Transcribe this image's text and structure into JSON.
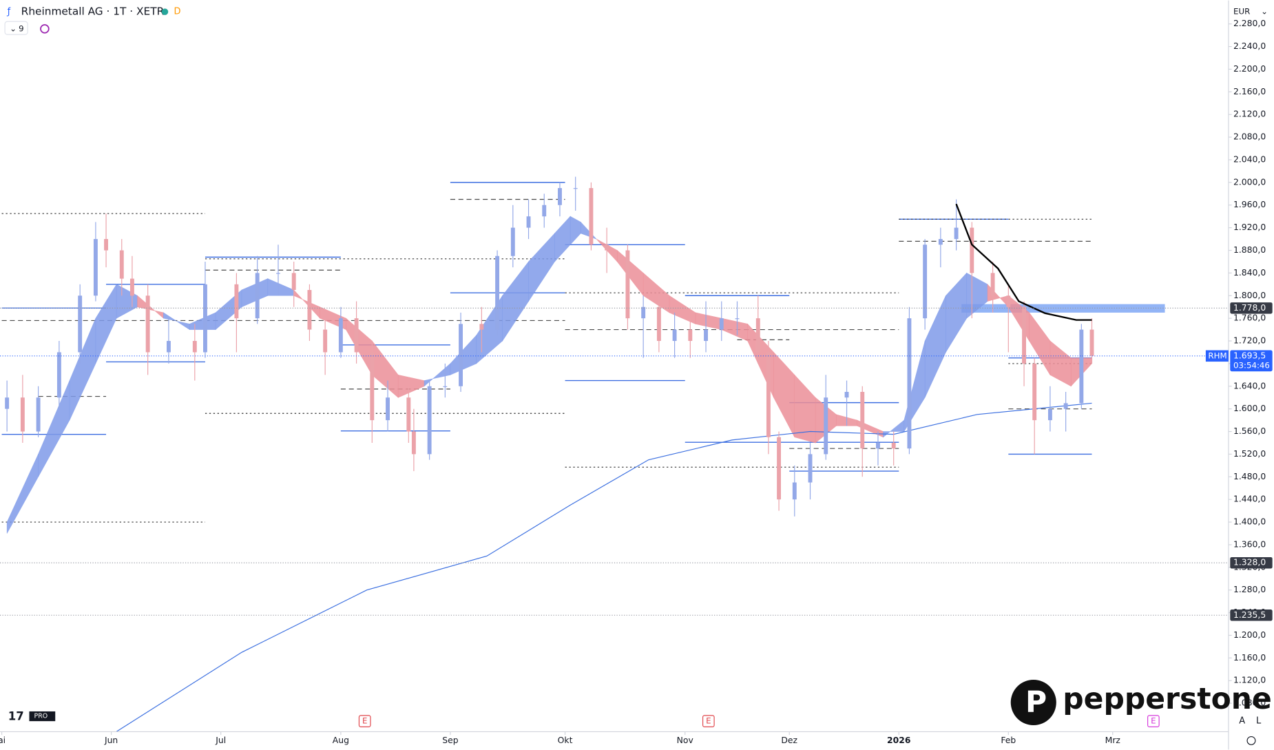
{
  "header": {
    "symbol": "Rheinmetall AG · 1T · XETR",
    "badge": "D",
    "indicators_count": "9",
    "currency": "EUR"
  },
  "chart_data": {
    "type": "candlestick",
    "x": [
      -20,
      -17,
      -14,
      -10,
      -6,
      -3,
      -1,
      2,
      4,
      7,
      11,
      16,
      18,
      24,
      28,
      32,
      35,
      38,
      41,
      44,
      47,
      50,
      53,
      57,
      58,
      61,
      64,
      67,
      71,
      74,
      77,
      80,
      83,
      86,
      89,
      92,
      95,
      99,
      102,
      105,
      108,
      111,
      114,
      117,
      120,
      124,
      126,
      128,
      131,
      134,
      137,
      141,
      144,
      147,
      150,
      153,
      156,
      159,
      162,
      165,
      169,
      172,
      175,
      177,
      180,
      183,
      186,
      188
    ],
    "open": [
      1600,
      1620,
      1560,
      1620,
      1700,
      1800,
      1900,
      1880,
      1830,
      1800,
      1700,
      1720,
      1700,
      1820,
      1760,
      1840,
      1840,
      1810,
      1740,
      1700,
      1760,
      1700,
      1580,
      1620,
      1560,
      1520,
      1640,
      1640,
      1750,
      1740,
      1870,
      1920,
      1940,
      1960,
      1990,
      1990,
      1890,
      1880,
      1760,
      1780,
      1720,
      1740,
      1720,
      1740,
      1760,
      1760,
      1700,
      1550,
      1440,
      1470,
      1520,
      1620,
      1630,
      1530,
      1540,
      1530,
      1760,
      1890,
      1900,
      1920,
      1840,
      1800,
      1780,
      1680,
      1580,
      1600,
      1610,
      1740
    ],
    "high": [
      1650,
      1660,
      1640,
      1720,
      1820,
      1930,
      1945,
      1900,
      1870,
      1820,
      1760,
      1750,
      1860,
      1840,
      1870,
      1890,
      1860,
      1820,
      1760,
      1780,
      1790,
      1720,
      1650,
      1640,
      1600,
      1650,
      1680,
      1770,
      1780,
      1880,
      1960,
      1970,
      1980,
      2000,
      2010,
      2000,
      1920,
      1890,
      1800,
      1800,
      1770,
      1760,
      1790,
      1790,
      1790,
      1800,
      1720,
      1560,
      1500,
      1540,
      1660,
      1650,
      1640,
      1560,
      1560,
      1780,
      1900,
      1920,
      1970,
      1930,
      1860,
      1820,
      1790,
      1690,
      1640,
      1630,
      1750,
      1760
    ],
    "low": [
      1560,
      1540,
      1550,
      1600,
      1680,
      1790,
      1850,
      1800,
      1780,
      1660,
      1680,
      1650,
      1690,
      1700,
      1750,
      1800,
      1780,
      1720,
      1660,
      1690,
      1680,
      1540,
      1560,
      1540,
      1490,
      1510,
      1620,
      1630,
      1700,
      1730,
      1850,
      1900,
      1920,
      1940,
      1950,
      1880,
      1840,
      1740,
      1690,
      1700,
      1690,
      1690,
      1700,
      1720,
      1730,
      1680,
      1520,
      1420,
      1410,
      1440,
      1510,
      1570,
      1480,
      1500,
      1500,
      1520,
      1740,
      1850,
      1880,
      1760,
      1770,
      1700,
      1640,
      1520,
      1560,
      1560,
      1600,
      1680
    ],
    "close": [
      1620,
      1560,
      1620,
      1700,
      1800,
      1900,
      1880,
      1830,
      1800,
      1700,
      1720,
      1700,
      1820,
      1760,
      1840,
      1840,
      1810,
      1740,
      1700,
      1760,
      1700,
      1580,
      1620,
      1560,
      1520,
      1640,
      1640,
      1750,
      1740,
      1870,
      1920,
      1940,
      1960,
      1990,
      1990,
      1890,
      1880,
      1760,
      1780,
      1720,
      1740,
      1720,
      1740,
      1760,
      1760,
      1700,
      1550,
      1440,
      1470,
      1520,
      1620,
      1630,
      1530,
      1540,
      1530,
      1760,
      1890,
      1900,
      1920,
      1840,
      1800,
      1780,
      1680,
      1580,
      1600,
      1610,
      1740,
      1693.5
    ],
    "up_color": "#93a8e8",
    "down_color": "#eba2a9",
    "xlim": [
      -21.34,
      214.2
    ],
    "xticks": [
      {
        "value": -21,
        "label": "ai"
      },
      {
        "value": 0,
        "label": "Jun"
      },
      {
        "value": 21,
        "label": "Jul"
      },
      {
        "value": 44,
        "label": "Aug"
      },
      {
        "value": 65,
        "label": "Sep"
      },
      {
        "value": 87,
        "label": "Okt"
      },
      {
        "value": 110,
        "label": "Nov"
      },
      {
        "value": 130,
        "label": "Dez"
      },
      {
        "value": 151,
        "label": "2026"
      },
      {
        "value": 172,
        "label": "Feb"
      },
      {
        "value": 192,
        "label": "Mrz"
      }
    ],
    "ylim": [
      1029.7,
      2321.5
    ],
    "yticks": [
      {
        "value": 1080,
        "label": "1.080,0"
      },
      {
        "value": 1120,
        "label": "1.120,0"
      },
      {
        "value": 1160,
        "label": "1.160,0"
      },
      {
        "value": 1200,
        "label": "1.200,0"
      },
      {
        "value": 1240,
        "label": "1.240,0"
      },
      {
        "value": 1280,
        "label": "1.280,0"
      },
      {
        "value": 1320,
        "label": "1.320,0"
      },
      {
        "value": 1360,
        "label": "1.360,0"
      },
      {
        "value": 1400,
        "label": "1.400,0"
      },
      {
        "value": 1440,
        "label": "1.440,0"
      },
      {
        "value": 1480,
        "label": "1.480,0"
      },
      {
        "value": 1520,
        "label": "1.520,0"
      },
      {
        "value": 1560,
        "label": "1.560,0"
      },
      {
        "value": 1600,
        "label": "1.600,0"
      },
      {
        "value": 1640,
        "label": "1.640,0"
      },
      {
        "value": 1680,
        "label": "1.680,0"
      },
      {
        "value": 1720,
        "label": "1.720,0"
      },
      {
        "value": 1760,
        "label": "1.760,0"
      },
      {
        "value": 1800,
        "label": "1.800,0"
      },
      {
        "value": 1840,
        "label": "1.840,0"
      },
      {
        "value": 1880,
        "label": "1.880,0"
      },
      {
        "value": 1920,
        "label": "1.920,0"
      },
      {
        "value": 1960,
        "label": "1.960,0"
      },
      {
        "value": 2000,
        "label": "2.000,0"
      },
      {
        "value": 2040,
        "label": "2.040,0"
      },
      {
        "value": 2080,
        "label": "2.080,0"
      },
      {
        "value": 2120,
        "label": "2.120,0"
      },
      {
        "value": 2160,
        "label": "2.160,0"
      },
      {
        "value": 2200,
        "label": "2.200,0"
      },
      {
        "value": 2240,
        "label": "2.240,0"
      },
      {
        "value": 2280,
        "label": "2.280,0"
      }
    ],
    "ribbon": {
      "x": [
        -20,
        -14,
        -8,
        -3,
        1,
        5,
        10,
        15,
        20,
        25,
        30,
        35,
        40,
        45,
        50,
        55,
        60,
        65,
        70,
        75,
        80,
        85,
        88,
        90,
        93,
        97,
        102,
        107,
        112,
        117,
        122,
        127,
        131,
        135,
        139,
        143,
        148,
        152,
        156,
        160,
        164,
        168,
        172,
        176,
        180,
        184,
        188
      ],
      "fast": [
        1400,
        1520,
        1650,
        1760,
        1820,
        1800,
        1760,
        1750,
        1770,
        1810,
        1830,
        1810,
        1760,
        1740,
        1660,
        1620,
        1640,
        1680,
        1730,
        1800,
        1860,
        1910,
        1940,
        1930,
        1900,
        1860,
        1800,
        1770,
        1750,
        1740,
        1720,
        1620,
        1550,
        1540,
        1570,
        1570,
        1550,
        1580,
        1720,
        1800,
        1840,
        1820,
        1780,
        1720,
        1660,
        1640,
        1680
      ],
      "slow": [
        1380,
        1480,
        1580,
        1680,
        1760,
        1780,
        1770,
        1740,
        1740,
        1780,
        1800,
        1800,
        1780,
        1760,
        1720,
        1660,
        1650,
        1660,
        1680,
        1720,
        1790,
        1860,
        1890,
        1910,
        1900,
        1880,
        1840,
        1800,
        1770,
        1760,
        1750,
        1700,
        1660,
        1620,
        1590,
        1580,
        1560,
        1560,
        1620,
        1700,
        1760,
        1790,
        1800,
        1770,
        1720,
        1690,
        1690
      ],
      "up_color": "#7f9be9",
      "down_color": "#ec8f98"
    },
    "moving_average": {
      "x": [
        1,
        25,
        49,
        72,
        88,
        103,
        119,
        134,
        150,
        166,
        188
      ],
      "values": [
        1030,
        1170,
        1280,
        1340,
        1430,
        1510,
        1545,
        1560,
        1555,
        1590,
        1610
      ],
      "color": "#3b6fe0"
    },
    "vwap": {
      "x": [
        162,
        165,
        170,
        174,
        179,
        185,
        188
      ],
      "values": [
        1962,
        1890,
        1848,
        1790,
        1769,
        1757,
        1757
      ],
      "color": "#000000"
    },
    "levels": [
      {
        "x": [
          -21,
          18
        ],
        "price": 1945,
        "style": "dotted"
      },
      {
        "x": [
          -21,
          18
        ],
        "price": 1400,
        "style": "dotted"
      },
      {
        "x": [
          -21,
          -1
        ],
        "price": 1778,
        "style": "solid"
      },
      {
        "x": [
          -21,
          -1
        ],
        "price": 1555,
        "style": "solid"
      },
      {
        "x": [
          -14,
          -1
        ],
        "price": 1622,
        "style": "dashed"
      },
      {
        "x": [
          -1,
          18
        ],
        "price": 1820,
        "style": "solid"
      },
      {
        "x": [
          -1,
          18
        ],
        "price": 1683,
        "style": "solid"
      },
      {
        "x": [
          18,
          44
        ],
        "price": 1868,
        "style": "solid"
      },
      {
        "x": [
          18,
          44
        ],
        "price": 1845,
        "style": "dashed"
      },
      {
        "x": [
          18,
          87
        ],
        "price": 1865,
        "style": "dotted"
      },
      {
        "x": [
          -21,
          87
        ],
        "price": 1756,
        "style": "dashed"
      },
      {
        "x": [
          18,
          87
        ],
        "price": 1592,
        "style": "dotted"
      },
      {
        "x": [
          44,
          65
        ],
        "price": 1713,
        "style": "solid"
      },
      {
        "x": [
          44,
          65
        ],
        "price": 1635,
        "style": "dashed"
      },
      {
        "x": [
          44,
          65
        ],
        "price": 1561,
        "style": "solid"
      },
      {
        "x": [
          65,
          87
        ],
        "price": 2000,
        "style": "solid"
      },
      {
        "x": [
          65,
          87
        ],
        "price": 1970,
        "style": "dashed"
      },
      {
        "x": [
          65,
          87
        ],
        "price": 1805,
        "style": "solid"
      },
      {
        "x": [
          87,
          110
        ],
        "price": 1890,
        "style": "solid"
      },
      {
        "x": [
          87,
          151
        ],
        "price": 1805,
        "style": "dotted"
      },
      {
        "x": [
          87,
          110
        ],
        "price": 1650,
        "style": "solid"
      },
      {
        "x": [
          87,
          151
        ],
        "price": 1740,
        "style": "dashed"
      },
      {
        "x": [
          87,
          151
        ],
        "price": 1497,
        "style": "dotted"
      },
      {
        "x": [
          110,
          130
        ],
        "price": 1800,
        "style": "solid"
      },
      {
        "x": [
          110,
          151
        ],
        "price": 1541,
        "style": "solid"
      },
      {
        "x": [
          120,
          130
        ],
        "price": 1722,
        "style": "dashed"
      },
      {
        "x": [
          130,
          151
        ],
        "price": 1611,
        "style": "solid"
      },
      {
        "x": [
          130,
          151
        ],
        "price": 1490,
        "style": "solid"
      },
      {
        "x": [
          130,
          151
        ],
        "price": 1530,
        "style": "dashed"
      },
      {
        "x": [
          151,
          172
        ],
        "price": 1935,
        "style": "solid"
      },
      {
        "x": [
          151,
          188
        ],
        "price": 1935,
        "style": "dotted"
      },
      {
        "x": [
          151,
          188
        ],
        "price": 1896,
        "style": "dashed"
      },
      {
        "x": [
          172,
          188
        ],
        "price": 1690,
        "style": "solid"
      },
      {
        "x": [
          172,
          188
        ],
        "price": 1680,
        "style": "dotted"
      },
      {
        "x": [
          172,
          188
        ],
        "price": 1600,
        "style": "dashed"
      },
      {
        "x": [
          172,
          188
        ],
        "price": 1520,
        "style": "solid"
      }
    ],
    "zone": {
      "x": [
        163,
        202
      ],
      "y": [
        1770,
        1785
      ],
      "color": "#7fa7f5"
    },
    "price_labels": [
      {
        "value": 1778,
        "label": "1.778,0"
      },
      {
        "value": 1328,
        "label": "1.328,0"
      },
      {
        "value": 1235.5,
        "label": "1.235,5"
      }
    ],
    "last_price": {
      "value": 1693.5,
      "label": "1.693,5",
      "symbol": "RHM",
      "countdown": "03:54:46",
      "color": "#2962ff"
    },
    "events": [
      {
        "x": 48.6,
        "label": "E",
        "color": "#e0464b"
      },
      {
        "x": 114.5,
        "label": "E",
        "color": "#e0464b"
      },
      {
        "x": 199.8,
        "label": "E",
        "color": "#d63adb"
      }
    ]
  },
  "watermark": "pepperstone",
  "toolbar": [
    "A",
    "L"
  ]
}
